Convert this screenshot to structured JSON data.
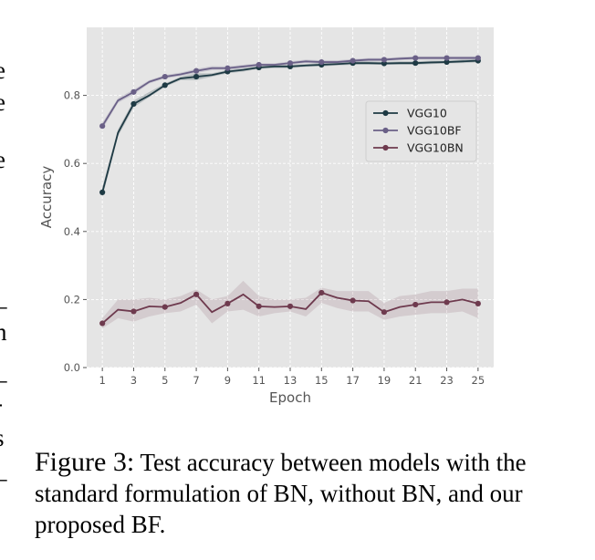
{
  "chart_data": {
    "type": "line",
    "title": "",
    "xlabel": "Epoch",
    "ylabel": "Accuracy",
    "xlim": [
      0,
      26
    ],
    "ylim": [
      0,
      1.0
    ],
    "xticks": [
      1,
      3,
      5,
      7,
      9,
      11,
      13,
      15,
      17,
      19,
      21,
      23,
      25
    ],
    "yticks": [
      0.0,
      0.2,
      0.4,
      0.6,
      0.8
    ],
    "ytick_labels": [
      "0.0",
      "0.2",
      "0.4",
      "0.6",
      "0.8"
    ],
    "grid": true,
    "legend_position": "upper-right",
    "x": [
      1,
      2,
      3,
      4,
      5,
      6,
      7,
      8,
      9,
      10,
      11,
      12,
      13,
      14,
      15,
      16,
      17,
      18,
      19,
      20,
      21,
      22,
      23,
      24,
      25
    ],
    "series": [
      {
        "name": "VGG10",
        "color": "#1e3a44",
        "values": [
          0.515,
          0.69,
          0.775,
          0.8,
          0.83,
          0.85,
          0.855,
          0.86,
          0.87,
          0.875,
          0.882,
          0.885,
          0.885,
          0.888,
          0.89,
          0.892,
          0.895,
          0.895,
          0.894,
          0.895,
          0.895,
          0.897,
          0.898,
          0.9,
          0.902
        ],
        "lower": [
          0.5,
          0.68,
          0.765,
          0.795,
          0.825,
          0.845,
          0.845,
          0.855,
          0.865,
          0.87,
          0.878,
          0.88,
          0.88,
          0.884,
          0.885,
          0.888,
          0.89,
          0.89,
          0.89,
          0.89,
          0.89,
          0.892,
          0.894,
          0.895,
          0.897
        ],
        "upper": [
          0.53,
          0.7,
          0.785,
          0.81,
          0.835,
          0.855,
          0.865,
          0.865,
          0.875,
          0.88,
          0.886,
          0.89,
          0.89,
          0.892,
          0.895,
          0.896,
          0.9,
          0.9,
          0.898,
          0.9,
          0.9,
          0.902,
          0.902,
          0.905,
          0.907
        ]
      },
      {
        "name": "VGG10BF",
        "color": "#6a6087",
        "values": [
          0.71,
          0.785,
          0.81,
          0.84,
          0.855,
          0.862,
          0.872,
          0.88,
          0.88,
          0.885,
          0.89,
          0.89,
          0.895,
          0.9,
          0.898,
          0.898,
          0.902,
          0.905,
          0.905,
          0.908,
          0.91,
          0.91,
          0.91,
          0.91,
          0.91
        ],
        "lower": [
          0.7,
          0.778,
          0.803,
          0.835,
          0.85,
          0.857,
          0.866,
          0.874,
          0.875,
          0.88,
          0.886,
          0.886,
          0.89,
          0.895,
          0.893,
          0.893,
          0.897,
          0.9,
          0.9,
          0.903,
          0.905,
          0.905,
          0.905,
          0.905,
          0.905
        ],
        "upper": [
          0.72,
          0.792,
          0.817,
          0.845,
          0.86,
          0.867,
          0.878,
          0.886,
          0.885,
          0.89,
          0.894,
          0.894,
          0.9,
          0.905,
          0.903,
          0.903,
          0.907,
          0.91,
          0.91,
          0.913,
          0.915,
          0.915,
          0.915,
          0.915,
          0.915
        ]
      },
      {
        "name": "VGG10BN",
        "color": "#6e3a4e",
        "values": [
          0.13,
          0.17,
          0.165,
          0.18,
          0.178,
          0.19,
          0.215,
          0.163,
          0.188,
          0.215,
          0.18,
          0.178,
          0.18,
          0.172,
          0.22,
          0.205,
          0.197,
          0.195,
          0.163,
          0.178,
          0.185,
          0.192,
          0.192,
          0.2,
          0.188
        ],
        "lower": [
          0.115,
          0.145,
          0.135,
          0.15,
          0.16,
          0.165,
          0.185,
          0.13,
          0.165,
          0.17,
          0.15,
          0.16,
          0.165,
          0.15,
          0.19,
          0.175,
          0.165,
          0.165,
          0.14,
          0.15,
          0.155,
          0.16,
          0.16,
          0.165,
          0.145
        ],
        "upper": [
          0.145,
          0.2,
          0.2,
          0.205,
          0.2,
          0.21,
          0.23,
          0.2,
          0.21,
          0.255,
          0.21,
          0.2,
          0.2,
          0.205,
          0.235,
          0.225,
          0.225,
          0.225,
          0.19,
          0.21,
          0.215,
          0.225,
          0.225,
          0.232,
          0.232
        ]
      }
    ]
  },
  "caption": {
    "figure_label": "Figure 3:",
    "text": "Test accuracy between models with the standard formulation of BN, without BN, and our proposed BF."
  },
  "left_edge_fragments": [
    "e",
    "e",
    "e",
    ",",
    "_",
    "n",
    "_",
    "-",
    "s",
    "_"
  ]
}
